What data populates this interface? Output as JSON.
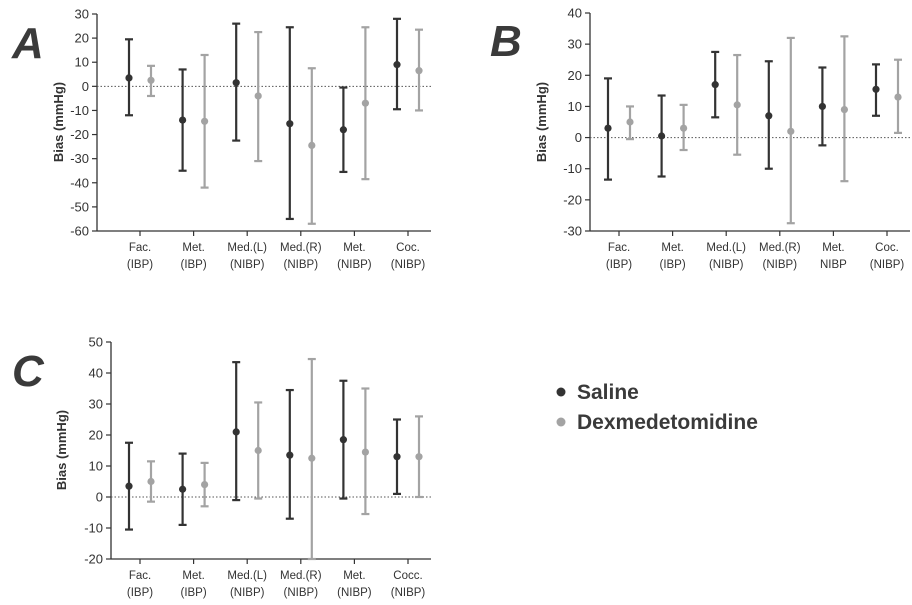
{
  "series_colors": {
    "Saline": "#333333",
    "Dexmedetomidine": "#a3a3a3"
  },
  "legend": [
    {
      "label": "Saline",
      "color": "#333333"
    },
    {
      "label": "Dexmedetomidine",
      "color": "#a3a3a3"
    }
  ],
  "chart_data": [
    {
      "panel": "A",
      "type": "scatter",
      "error_bars": true,
      "ylabel": "Bias (mmHg)",
      "ylim": [
        -60,
        30
      ],
      "yticks": [
        -60,
        -50,
        -40,
        -30,
        -20,
        -10,
        0,
        10,
        20,
        30
      ],
      "zero_line": "dotted",
      "categories": [
        [
          "Fac.",
          "(IBP)"
        ],
        [
          "Met.",
          "(IBP)"
        ],
        [
          "Med.(L)",
          "(NIBP)"
        ],
        [
          "Med.(R)",
          "(NIBP)"
        ],
        [
          "Met.",
          "(NIBP)"
        ],
        [
          "Coc.",
          "(NIBP)"
        ]
      ],
      "series": [
        {
          "name": "Saline",
          "points": [
            {
              "mean": 3.5,
              "lower": -12,
              "upper": 19.5
            },
            {
              "mean": -14,
              "lower": -35,
              "upper": 7
            },
            {
              "mean": 1.5,
              "lower": -22.5,
              "upper": 26
            },
            {
              "mean": -15.5,
              "lower": -55,
              "upper": 24.5
            },
            {
              "mean": -18,
              "lower": -35.5,
              "upper": -0.5
            },
            {
              "mean": 9,
              "lower": -9.5,
              "upper": 28
            }
          ]
        },
        {
          "name": "Dexmedetomidine",
          "points": [
            {
              "mean": 2.5,
              "lower": -4,
              "upper": 8.5
            },
            {
              "mean": -14.5,
              "lower": -42,
              "upper": 13
            },
            {
              "mean": -4,
              "lower": -31,
              "upper": 22.5
            },
            {
              "mean": -24.5,
              "lower": -57,
              "upper": 7.5
            },
            {
              "mean": -7,
              "lower": -38.5,
              "upper": 24.5
            },
            {
              "mean": 6.5,
              "lower": -10,
              "upper": 23.5
            }
          ]
        }
      ]
    },
    {
      "panel": "B",
      "type": "scatter",
      "error_bars": true,
      "ylabel": "Bias (mmHg)",
      "ylim": [
        -30,
        40
      ],
      "yticks": [
        -30,
        -20,
        -10,
        0,
        10,
        20,
        30,
        40
      ],
      "zero_line": "dotted",
      "categories": [
        [
          "Fac.",
          "(IBP)"
        ],
        [
          "Met.",
          "(IBP)"
        ],
        [
          "Med.(L)",
          "(NIBP)"
        ],
        [
          "Med.(R)",
          "(NIBP)"
        ],
        [
          "Met.",
          "NIBP"
        ],
        [
          "Coc.",
          "(NIBP)"
        ]
      ],
      "series": [
        {
          "name": "Saline",
          "points": [
            {
              "mean": 3,
              "lower": -13.5,
              "upper": 19
            },
            {
              "mean": 0.5,
              "lower": -12.5,
              "upper": 13.5
            },
            {
              "mean": 17,
              "lower": 6.5,
              "upper": 27.5
            },
            {
              "mean": 7,
              "lower": -10,
              "upper": 24.5
            },
            {
              "mean": 10,
              "lower": -2.5,
              "upper": 22.5
            },
            {
              "mean": 15.5,
              "lower": 7,
              "upper": 23.5
            }
          ]
        },
        {
          "name": "Dexmedetomidine",
          "points": [
            {
              "mean": 5,
              "lower": -0.5,
              "upper": 10
            },
            {
              "mean": 3,
              "lower": -4,
              "upper": 10.5
            },
            {
              "mean": 10.5,
              "lower": -5.5,
              "upper": 26.5
            },
            {
              "mean": 2,
              "lower": -27.5,
              "upper": 32
            },
            {
              "mean": 9,
              "lower": -14,
              "upper": 32.5
            },
            {
              "mean": 13,
              "lower": 1.5,
              "upper": 25
            }
          ]
        }
      ]
    },
    {
      "panel": "C",
      "type": "scatter",
      "error_bars": true,
      "ylabel": "Bias (mmHg)",
      "ylim": [
        -20,
        50
      ],
      "yticks": [
        -20,
        -10,
        0,
        10,
        20,
        30,
        40,
        50
      ],
      "zero_line": "dotted",
      "categories": [
        [
          "Fac.",
          "(IBP)"
        ],
        [
          "Met.",
          "(IBP)"
        ],
        [
          "Med.(L)",
          "(NIBP)"
        ],
        [
          "Med.(R)",
          "(NIBP)"
        ],
        [
          "Met.",
          "(NIBP)"
        ],
        [
          "Cocc.",
          "(NIBP)"
        ]
      ],
      "series": [
        {
          "name": "Saline",
          "points": [
            {
              "mean": 3.5,
              "lower": -10.5,
              "upper": 17.5
            },
            {
              "mean": 2.5,
              "lower": -9,
              "upper": 14
            },
            {
              "mean": 21,
              "lower": -1,
              "upper": 43.5
            },
            {
              "mean": 13.5,
              "lower": -7,
              "upper": 34.5
            },
            {
              "mean": 18.5,
              "lower": -0.5,
              "upper": 37.5
            },
            {
              "mean": 13,
              "lower": 1,
              "upper": 25
            }
          ]
        },
        {
          "name": "Dexmedetomidine",
          "points": [
            {
              "mean": 5,
              "lower": -1.5,
              "upper": 11.5
            },
            {
              "mean": 4,
              "lower": -3,
              "upper": 11
            },
            {
              "mean": 15,
              "lower": -0.5,
              "upper": 30.5
            },
            {
              "mean": 12.5,
              "lower": -20,
              "upper": 44.5
            },
            {
              "mean": 14.5,
              "lower": -5.5,
              "upper": 35
            },
            {
              "mean": 13,
              "lower": 0,
              "upper": 26
            }
          ]
        }
      ]
    }
  ]
}
